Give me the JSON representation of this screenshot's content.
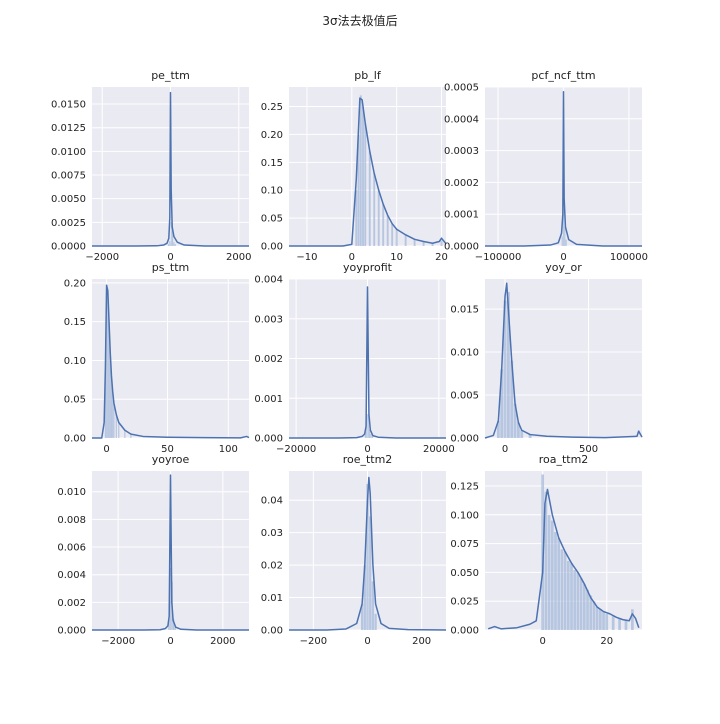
{
  "figure": {
    "suptitle": "3σ法去极值后"
  },
  "colors": {
    "axes_bg": "#eaeaf2",
    "grid": "#ffffff",
    "line": "#4c72b0",
    "bar": "#a5b9d9"
  },
  "chart_data": [
    {
      "type": "area",
      "title": "pe_ttm",
      "xlim": [
        -2300,
        2300
      ],
      "ylim": [
        0,
        0.0168
      ],
      "xticks": [
        -2000,
        0,
        2000
      ],
      "yticks": [
        0,
        0.0025,
        0.005,
        0.0075,
        0.01,
        0.0125,
        0.015
      ],
      "ytick_labels": [
        "0.0000",
        "0.0025",
        "0.0050",
        "0.0075",
        "0.0100",
        "0.0125",
        "0.0150"
      ],
      "density_points": [
        [
          -2300,
          0
        ],
        [
          -1000,
          0
        ],
        [
          -400,
          2e-05
        ],
        [
          -200,
          0.0001
        ],
        [
          -100,
          0.0003
        ],
        [
          -50,
          0.0008
        ],
        [
          -20,
          0.003
        ],
        [
          0,
          0.0162
        ],
        [
          20,
          0.006
        ],
        [
          50,
          0.002
        ],
        [
          100,
          0.001
        ],
        [
          200,
          0.0004
        ],
        [
          400,
          0.0001
        ],
        [
          1000,
          0
        ],
        [
          2300,
          0
        ]
      ],
      "histogram": {
        "x": [
          -60,
          -20,
          20,
          60,
          100,
          140
        ],
        "heights": [
          0.0002,
          0.0005,
          0.0025,
          0.0016,
          0.0004,
          0.0002
        ]
      }
    },
    {
      "type": "area",
      "title": "pb_lf",
      "xlim": [
        -14,
        21
      ],
      "ylim": [
        0,
        0.285
      ],
      "xticks": [
        -10,
        0,
        10,
        20
      ],
      "yticks": [
        0,
        0.05,
        0.1,
        0.15,
        0.2,
        0.25
      ],
      "ytick_labels": [
        "0.00",
        "0.05",
        "0.10",
        "0.15",
        "0.20",
        "0.25"
      ],
      "density_points": [
        [
          -14,
          0
        ],
        [
          -2,
          0
        ],
        [
          0,
          0.003
        ],
        [
          1,
          0.12
        ],
        [
          1.8,
          0.265
        ],
        [
          2.3,
          0.262
        ],
        [
          3,
          0.22
        ],
        [
          4,
          0.17
        ],
        [
          5,
          0.13
        ],
        [
          6,
          0.1
        ],
        [
          7,
          0.075
        ],
        [
          8,
          0.055
        ],
        [
          9,
          0.04
        ],
        [
          10,
          0.03
        ],
        [
          12,
          0.02
        ],
        [
          14,
          0.012
        ],
        [
          16,
          0.008
        ],
        [
          18,
          0.005
        ],
        [
          19.5,
          0.008
        ],
        [
          20,
          0.014
        ],
        [
          21,
          0.004
        ]
      ],
      "histogram": {
        "x": [
          1,
          1.5,
          2,
          2.5,
          3,
          4,
          5,
          6,
          7,
          8,
          9,
          10,
          12,
          14,
          16,
          18,
          20
        ],
        "heights": [
          0.1,
          0.2,
          0.27,
          0.25,
          0.22,
          0.17,
          0.13,
          0.1,
          0.075,
          0.055,
          0.04,
          0.03,
          0.02,
          0.012,
          0.008,
          0.005,
          0.01
        ]
      }
    },
    {
      "type": "area",
      "title": "pcf_ncf_ttm",
      "xlim": [
        -120000,
        120000
      ],
      "ylim": [
        0,
        0.0005
      ],
      "xticks": [
        -100000,
        0,
        100000
      ],
      "yticks": [
        0,
        0.0001,
        0.0002,
        0.0003,
        0.0004,
        0.0005
      ],
      "ytick_labels": [
        "0.0000",
        "0.0001",
        "0.0002",
        "0.0003",
        "0.0004",
        "0.0005"
      ],
      "density_points": [
        [
          -120000,
          0
        ],
        [
          -60000,
          0
        ],
        [
          -20000,
          3e-06
        ],
        [
          -8000,
          1e-05
        ],
        [
          -3000,
          4e-05
        ],
        [
          -1000,
          0.0001
        ],
        [
          0,
          0.000485
        ],
        [
          1000,
          0.00015
        ],
        [
          3000,
          6e-05
        ],
        [
          8000,
          2e-05
        ],
        [
          20000,
          5e-06
        ],
        [
          60000,
          0
        ],
        [
          120000,
          0
        ]
      ],
      "histogram": {
        "x": [
          -2000,
          0,
          2000,
          4000
        ],
        "heights": [
          3e-05,
          0.0002,
          6e-05,
          2e-05
        ]
      }
    },
    {
      "type": "area",
      "title": "ps_ttm",
      "xlim": [
        -12,
        117
      ],
      "ylim": [
        0,
        0.205
      ],
      "xticks": [
        0,
        50,
        100
      ],
      "yticks": [
        0,
        0.05,
        0.1,
        0.15,
        0.2
      ],
      "ytick_labels": [
        "0.00",
        "0.05",
        "0.10",
        "0.15",
        "0.20"
      ],
      "density_points": [
        [
          -12,
          0
        ],
        [
          -4,
          0
        ],
        [
          -2,
          0.02
        ],
        [
          -1,
          0.09
        ],
        [
          0,
          0.197
        ],
        [
          1,
          0.19
        ],
        [
          2,
          0.15
        ],
        [
          3,
          0.11
        ],
        [
          4,
          0.08
        ],
        [
          5,
          0.06
        ],
        [
          6,
          0.045
        ],
        [
          8,
          0.03
        ],
        [
          10,
          0.02
        ],
        [
          15,
          0.01
        ],
        [
          20,
          0.005
        ],
        [
          30,
          0.002
        ],
        [
          50,
          0.001
        ],
        [
          80,
          0.0005
        ],
        [
          110,
          0.0002
        ],
        [
          115,
          0.002
        ],
        [
          117,
          0.0005
        ]
      ],
      "histogram": {
        "x": [
          -1,
          0,
          1,
          2,
          3,
          4,
          5,
          6,
          8,
          10,
          15,
          20
        ],
        "heights": [
          0.08,
          0.19,
          0.19,
          0.15,
          0.11,
          0.08,
          0.06,
          0.045,
          0.03,
          0.02,
          0.01,
          0.005
        ]
      }
    },
    {
      "type": "area",
      "title": "yoyprofit",
      "xlim": [
        -22000,
        22000
      ],
      "ylim": [
        0,
        0.004
      ],
      "xticks": [
        -20000,
        0,
        20000
      ],
      "yticks": [
        0,
        0.001,
        0.002,
        0.003,
        0.004
      ],
      "ytick_labels": [
        "0.000",
        "0.001",
        "0.002",
        "0.003",
        "0.004"
      ],
      "density_points": [
        [
          -22000,
          0
        ],
        [
          -8000,
          0
        ],
        [
          -3000,
          1e-05
        ],
        [
          -1500,
          4e-05
        ],
        [
          -800,
          0.0001
        ],
        [
          -400,
          0.0003
        ],
        [
          0,
          0.0038
        ],
        [
          400,
          0.0006
        ],
        [
          800,
          0.0002
        ],
        [
          1500,
          6e-05
        ],
        [
          3000,
          2e-05
        ],
        [
          8000,
          0
        ],
        [
          22000,
          0
        ]
      ],
      "histogram": {
        "x": [
          -600,
          -200,
          200,
          600,
          1000,
          1400
        ],
        "heights": [
          0.00015,
          0.0006,
          0.0006,
          0.0002,
          0.0001,
          5e-05
        ]
      }
    },
    {
      "type": "area",
      "title": "yoy_or",
      "xlim": [
        -120,
        820
      ],
      "ylim": [
        0,
        0.0185
      ],
      "xticks": [
        0,
        500
      ],
      "yticks": [
        0,
        0.005,
        0.01,
        0.015
      ],
      "ytick_labels": [
        "0.000",
        "0.005",
        "0.010",
        "0.015"
      ],
      "density_points": [
        [
          -120,
          0
        ],
        [
          -70,
          0.0003
        ],
        [
          -40,
          0.002
        ],
        [
          -20,
          0.008
        ],
        [
          0,
          0.0165
        ],
        [
          10,
          0.018
        ],
        [
          20,
          0.015
        ],
        [
          40,
          0.009
        ],
        [
          60,
          0.004
        ],
        [
          80,
          0.0018
        ],
        [
          100,
          0.0009
        ],
        [
          150,
          0.0004
        ],
        [
          250,
          0.0002
        ],
        [
          400,
          0.0001
        ],
        [
          600,
          5e-05
        ],
        [
          790,
          0.0002
        ],
        [
          800,
          0.0008
        ],
        [
          820,
          0.0001
        ]
      ],
      "histogram": {
        "x": [
          -40,
          -20,
          0,
          20,
          40,
          60,
          80,
          100,
          150
        ],
        "heights": [
          0.002,
          0.008,
          0.016,
          0.017,
          0.009,
          0.004,
          0.0018,
          0.0009,
          0.0004
        ]
      }
    },
    {
      "type": "area",
      "title": "yoyroe",
      "xlim": [
        -3000,
        3000
      ],
      "ylim": [
        0,
        0.0115
      ],
      "xticks": [
        -2000,
        0,
        2000
      ],
      "yticks": [
        0,
        0.002,
        0.004,
        0.006,
        0.008,
        0.01
      ],
      "ytick_labels": [
        "0.000",
        "0.002",
        "0.004",
        "0.006",
        "0.008",
        "0.010"
      ],
      "density_points": [
        [
          -3000,
          0
        ],
        [
          -1000,
          0
        ],
        [
          -400,
          2e-05
        ],
        [
          -200,
          0.0001
        ],
        [
          -100,
          0.0003
        ],
        [
          -50,
          0.001
        ],
        [
          0,
          0.0112
        ],
        [
          50,
          0.002
        ],
        [
          100,
          0.0007
        ],
        [
          200,
          0.0002
        ],
        [
          400,
          5e-05
        ],
        [
          1000,
          0
        ],
        [
          3000,
          0
        ]
      ],
      "histogram": {
        "x": [
          -60,
          0,
          60,
          120,
          180
        ],
        "heights": [
          0.0008,
          0.0045,
          0.0035,
          0.0008,
          0.0002
        ]
      }
    },
    {
      "type": "area",
      "title": "roe_ttm2",
      "xlim": [
        -290,
        290
      ],
      "ylim": [
        0,
        0.049
      ],
      "xticks": [
        -200,
        0,
        200
      ],
      "yticks": [
        0,
        0.01,
        0.02,
        0.03,
        0.04
      ],
      "ytick_labels": [
        "0.00",
        "0.01",
        "0.02",
        "0.03",
        "0.04"
      ],
      "density_points": [
        [
          -290,
          0
        ],
        [
          -150,
          0
        ],
        [
          -80,
          0.0003
        ],
        [
          -40,
          0.002
        ],
        [
          -20,
          0.008
        ],
        [
          -10,
          0.02
        ],
        [
          0,
          0.04
        ],
        [
          5,
          0.047
        ],
        [
          10,
          0.042
        ],
        [
          20,
          0.02
        ],
        [
          30,
          0.008
        ],
        [
          50,
          0.002
        ],
        [
          80,
          0.0005
        ],
        [
          150,
          0.0001
        ],
        [
          290,
          0
        ]
      ],
      "histogram": {
        "x": [
          -20,
          -10,
          0,
          10,
          20,
          30
        ],
        "heights": [
          0.008,
          0.02,
          0.045,
          0.035,
          0.015,
          0.005
        ]
      }
    },
    {
      "type": "area",
      "title": "roa_ttm2",
      "xlim": [
        -18,
        31
      ],
      "ylim": [
        0,
        0.138
      ],
      "xticks": [
        0,
        20
      ],
      "yticks": [
        0,
        0.025,
        0.05,
        0.075,
        0.1,
        0.125
      ],
      "ytick_labels": [
        "0.000",
        "0.025",
        "0.050",
        "0.075",
        "0.100",
        "0.125"
      ],
      "density_points": [
        [
          -17,
          0.001
        ],
        [
          -15,
          0.003
        ],
        [
          -13,
          0.001
        ],
        [
          -8,
          0.002
        ],
        [
          -4,
          0.005
        ],
        [
          -2,
          0.008
        ],
        [
          0,
          0.05
        ],
        [
          0.7,
          0.11
        ],
        [
          1.5,
          0.122
        ],
        [
          3,
          0.1
        ],
        [
          5,
          0.08
        ],
        [
          7,
          0.068
        ],
        [
          9,
          0.058
        ],
        [
          11,
          0.05
        ],
        [
          13,
          0.04
        ],
        [
          15,
          0.028
        ],
        [
          17,
          0.02
        ],
        [
          19,
          0.016
        ],
        [
          21,
          0.014
        ],
        [
          23,
          0.011
        ],
        [
          25,
          0.009
        ],
        [
          27,
          0.008
        ],
        [
          28,
          0.014
        ],
        [
          29,
          0.01
        ],
        [
          30,
          0.002
        ]
      ],
      "histogram": {
        "x": [
          0,
          1,
          2,
          3,
          4,
          5,
          6,
          7,
          8,
          9,
          10,
          11,
          12,
          13,
          14,
          15,
          16,
          17,
          18,
          19,
          20,
          22,
          24,
          26,
          28
        ],
        "heights": [
          0.135,
          0.12,
          0.1,
          0.095,
          0.085,
          0.08,
          0.07,
          0.068,
          0.06,
          0.058,
          0.052,
          0.05,
          0.045,
          0.04,
          0.035,
          0.03,
          0.025,
          0.02,
          0.018,
          0.016,
          0.014,
          0.012,
          0.01,
          0.009,
          0.018
        ]
      }
    }
  ]
}
